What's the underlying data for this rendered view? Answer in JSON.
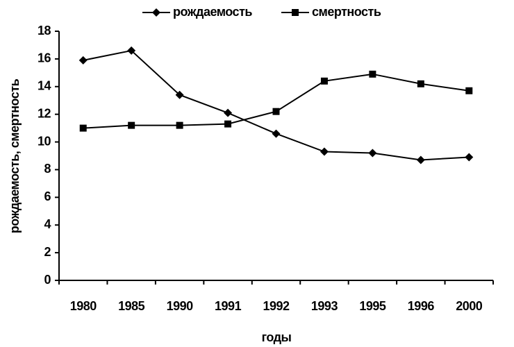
{
  "chart_data": {
    "type": "line",
    "x_label": "годы",
    "y_label": "рождаемость, смертность",
    "categories": [
      "1980",
      "1985",
      "1990",
      "1991",
      "1992",
      "1993",
      "1995",
      "1996",
      "2000"
    ],
    "series": [
      {
        "name": "рождаемость",
        "color": "#000000",
        "marker": "diamond",
        "values": [
          15.9,
          16.6,
          13.4,
          12.1,
          10.6,
          9.3,
          9.2,
          8.7,
          8.9
        ]
      },
      {
        "name": "смертность",
        "color": "#000000",
        "marker": "square",
        "values": [
          11.0,
          11.2,
          11.2,
          11.3,
          12.2,
          14.4,
          14.9,
          14.2,
          13.7
        ]
      }
    ],
    "ylim": [
      0,
      18
    ],
    "yticks": [
      0,
      2,
      4,
      6,
      8,
      10,
      12,
      14,
      16,
      18
    ],
    "legend": "top",
    "grid": false
  }
}
